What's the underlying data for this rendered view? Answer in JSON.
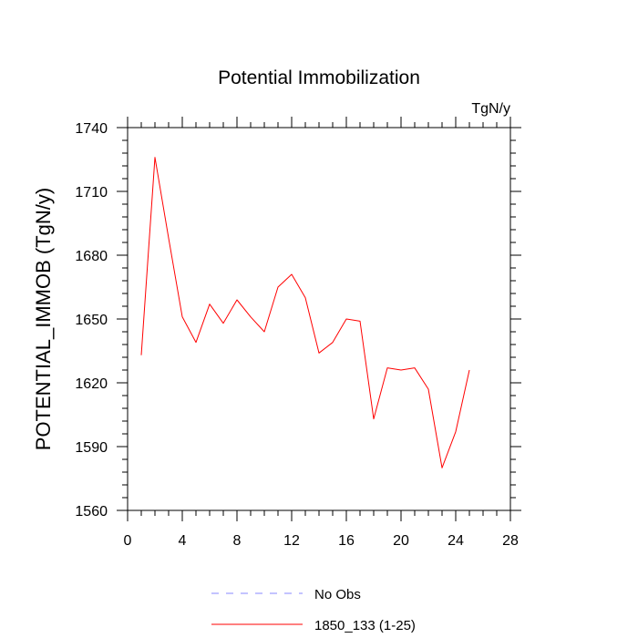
{
  "chart_data": {
    "type": "line",
    "title": "Potential Immobilization",
    "units_label": "TgN/y",
    "xlabel": "",
    "ylabel": "POTENTIAL_IMMOB  (TgN/y)",
    "xlim": [
      0,
      28
    ],
    "ylim": [
      1560,
      1740
    ],
    "xticks": [
      0,
      4,
      8,
      12,
      16,
      20,
      24,
      28
    ],
    "xticks_minor_step": 1,
    "yticks": [
      1560,
      1590,
      1620,
      1650,
      1680,
      1710,
      1740
    ],
    "yticks_minor_step": 6,
    "x": [
      1,
      2,
      3,
      4,
      5,
      6,
      7,
      8,
      9,
      10,
      11,
      12,
      13,
      14,
      15,
      16,
      17,
      18,
      19,
      20,
      21,
      22,
      23,
      24,
      25
    ],
    "series": [
      {
        "name": "1850_133 (1-25)",
        "color": "#ff0000",
        "values": [
          1633,
          1726,
          1688,
          1651,
          1639,
          1657,
          1648,
          1659,
          1651,
          1644,
          1665,
          1671,
          1660,
          1634,
          1639,
          1650,
          1649,
          1603,
          1627,
          1626,
          1627,
          1617,
          1580,
          1597,
          1626
        ]
      }
    ],
    "legend": [
      {
        "label": "No Obs",
        "color": "#8888ff",
        "style": "dashed"
      },
      {
        "label": "1850_133 (1-25)",
        "color": "#ff0000",
        "style": "solid"
      }
    ],
    "legend_position": "bottom-center"
  }
}
